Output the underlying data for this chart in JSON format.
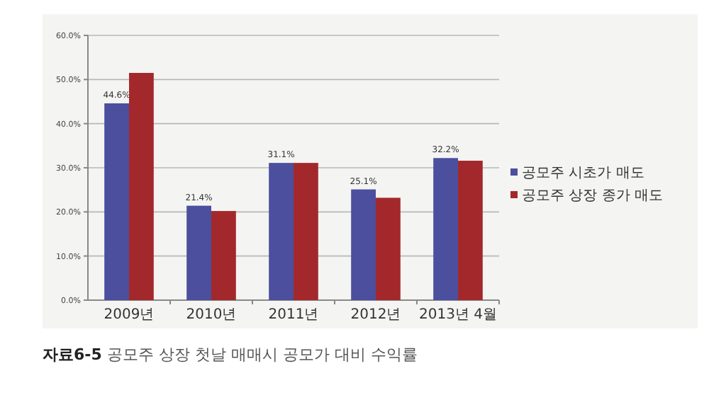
{
  "chart_data": {
    "type": "bar",
    "title": "**자료6-5** 공모주 상장 첫날 매매시 공모가 대비 수익률",
    "categories": [
      "2009년",
      "2010년",
      "2011년",
      "2012년",
      "2013년 4월"
    ],
    "series": [
      {
        "name": "공모주 시초가 매도",
        "color": "#4b4f9e",
        "values": [
          44.6,
          21.4,
          31.1,
          25.1,
          32.2
        ],
        "value_labels": [
          "44.6%",
          "21.4%",
          "31.1%",
          "25.1%",
          "32.2%"
        ]
      },
      {
        "name": "공모주 상장 종가 매도",
        "color": "#a3282c",
        "values": [
          51.5,
          20.2,
          31.1,
          23.2,
          31.6
        ]
      }
    ],
    "ylim": [
      0,
      60
    ],
    "yticks": [
      {
        "value": 0,
        "label": "0.0%"
      },
      {
        "value": 10,
        "label": "10.0%"
      },
      {
        "value": 20,
        "label": "20.0%"
      },
      {
        "value": 30,
        "label": "30.0%"
      },
      {
        "value": 40,
        "label": "40.0%"
      },
      {
        "value": 50,
        "label": "50.0%"
      },
      {
        "value": 60,
        "label": "60.0%"
      }
    ],
    "grid": "y",
    "legend": "right"
  }
}
